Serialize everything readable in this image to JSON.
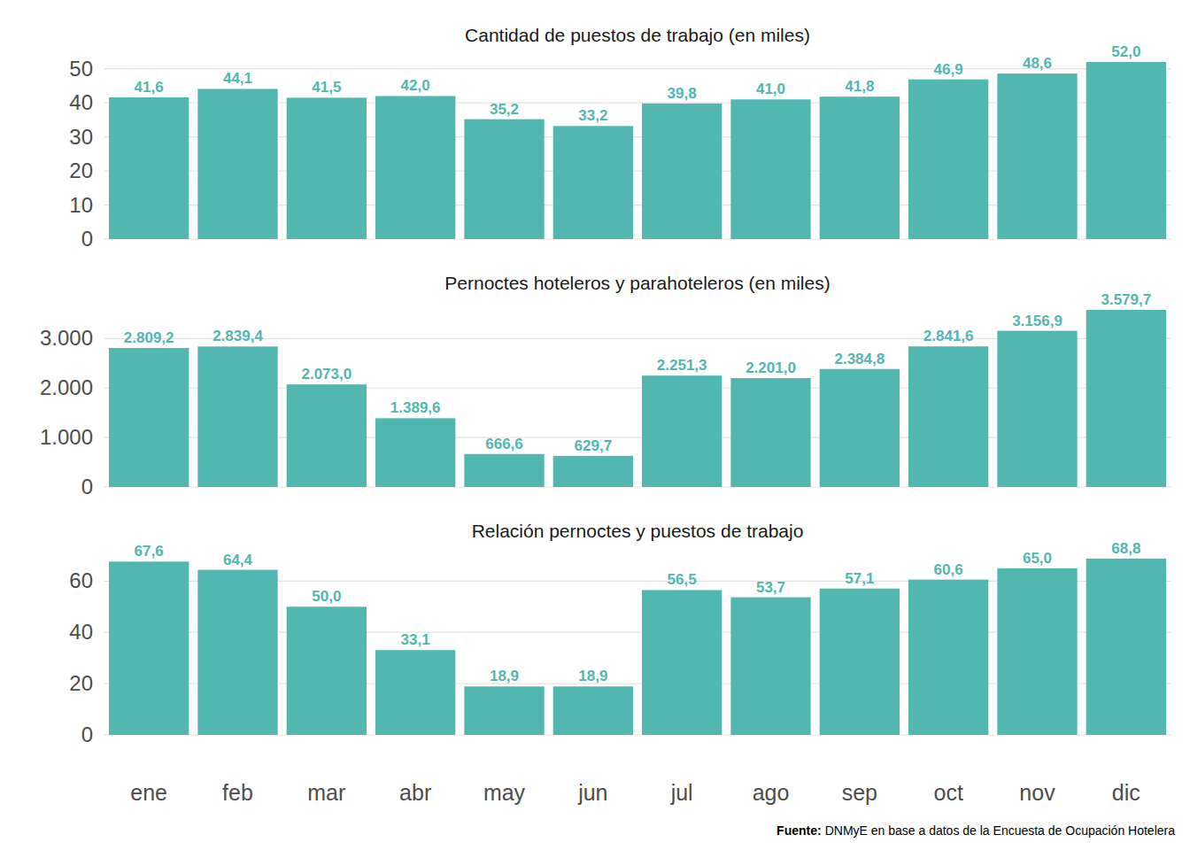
{
  "chart_data": [
    {
      "type": "bar",
      "title": "Cantidad de puestos de trabajo (en miles)",
      "categories": [
        "ene",
        "feb",
        "mar",
        "abr",
        "may",
        "jun",
        "jul",
        "ago",
        "sep",
        "oct",
        "nov",
        "dic"
      ],
      "values": [
        41.6,
        44.1,
        41.5,
        42.0,
        35.2,
        33.2,
        39.8,
        41.0,
        41.8,
        46.9,
        48.6,
        52.0
      ],
      "value_labels": [
        "41,6",
        "44,1",
        "41,5",
        "42,0",
        "35,2",
        "33,2",
        "39,8",
        "41,0",
        "41,8",
        "46,9",
        "48,6",
        "52,0"
      ],
      "color": "#52b7b0",
      "ylim": [
        0,
        54.6
      ],
      "yticks": [
        0,
        10,
        20,
        30,
        40,
        50
      ],
      "grid": true,
      "data_labels": true,
      "tick_labels": "y"
    },
    {
      "type": "bar",
      "title": "Pernoctes hoteleros y parahoteleros (en miles)",
      "categories": [
        "ene",
        "feb",
        "mar",
        "abr",
        "may",
        "jun",
        "jul",
        "ago",
        "sep",
        "oct",
        "nov",
        "dic"
      ],
      "values": [
        2809.2,
        2839.4,
        2073.0,
        1389.6,
        666.6,
        629.7,
        2251.3,
        2201.0,
        2384.8,
        2841.6,
        3156.9,
        3579.7
      ],
      "value_labels": [
        "2.809,2",
        "2.839,4",
        "2.073,0",
        "1.389,6",
        "666,6",
        "629,7",
        "2.251,3",
        "2.201,0",
        "2.384,8",
        "2.841,6",
        "3.156,9",
        "3.579,7"
      ],
      "color": "#52b7b0",
      "ylim": [
        0,
        3758
      ],
      "yticks": [
        0,
        {
          "value": 1000,
          "label": "1.000"
        },
        {
          "value": 2000,
          "label": "2.000"
        },
        {
          "value": 3000,
          "label": "3.000"
        }
      ],
      "grid": true,
      "data_labels": true,
      "tick_labels": "y"
    },
    {
      "type": "bar",
      "title": "Relación pernoctes y puestos de trabajo",
      "categories": [
        "ene",
        "feb",
        "mar",
        "abr",
        "may",
        "jun",
        "jul",
        "ago",
        "sep",
        "oct",
        "nov",
        "dic"
      ],
      "values": [
        67.6,
        64.4,
        50.0,
        33.1,
        18.9,
        18.9,
        56.5,
        53.7,
        57.1,
        60.6,
        65.0,
        68.8
      ],
      "value_labels": [
        "67,6",
        "64,4",
        "50,0",
        "33,1",
        "18,9",
        "18,9",
        "56,5",
        "53,7",
        "57,1",
        "60,6",
        "65,0",
        "68,8"
      ],
      "color": "#52b7b0",
      "ylim": [
        0,
        72.2
      ],
      "yticks": [
        0,
        20,
        40,
        60
      ],
      "grid": true,
      "data_labels": true
    }
  ],
  "source_label": "Fuente:",
  "source": "DNMyE en base a datos de la Encuesta de Ocupación Hotelera"
}
